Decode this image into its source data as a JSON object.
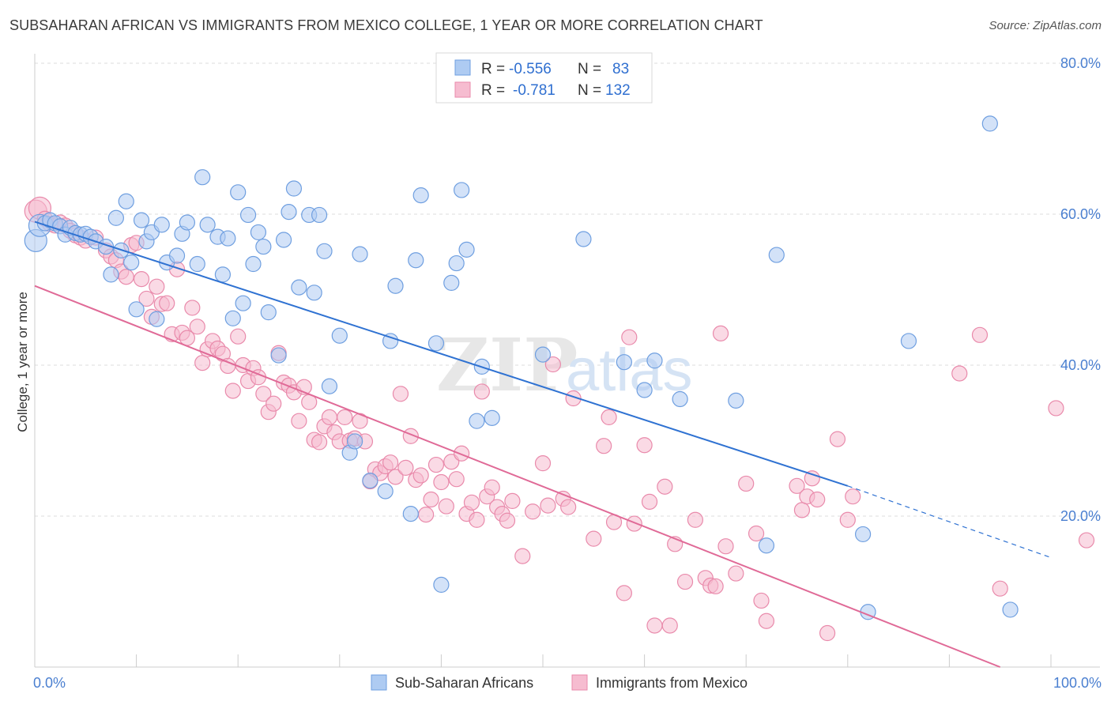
{
  "title": "SUBSAHARAN AFRICAN VS IMMIGRANTS FROM MEXICO COLLEGE, 1 YEAR OR MORE CORRELATION CHART",
  "source": "Source: ZipAtlas.com",
  "watermark": {
    "zip": "ZIP",
    "atlas": "atlas"
  },
  "colors": {
    "blue_fill": "#aecbf2",
    "blue_stroke": "#6f9fe0",
    "blue_line": "#2f72d2",
    "pink_fill": "#f6bcd0",
    "pink_stroke": "#e98aab",
    "pink_line": "#e06a97",
    "tick_text": "#4a7fd0",
    "grid": "#dddddd"
  },
  "legend": {
    "rows": [
      {
        "r_label": "R =",
        "r_value": "-0.556",
        "n_label": "N =",
        "n_value": "83"
      },
      {
        "r_label": "R =",
        "r_value": "-0.781",
        "n_label": "N =",
        "n_value": "132"
      }
    ]
  },
  "chart_data": {
    "type": "scatter",
    "xlabel": "",
    "ylabel": "College, 1 year or more",
    "xlim": [
      0,
      100
    ],
    "ylim": [
      0,
      80
    ],
    "x_tick_labels": [
      {
        "value": 0,
        "label": "0.0%"
      },
      {
        "value": 100,
        "label": "100.0%"
      }
    ],
    "y_tick_labels": [
      {
        "value": 20,
        "label": "20.0%"
      },
      {
        "value": 40,
        "label": "40.0%"
      },
      {
        "value": 60,
        "label": "60.0%"
      },
      {
        "value": 80,
        "label": "80.0%"
      }
    ],
    "grid": true,
    "legend_position": "top-center",
    "series": [
      {
        "name": "Sub-Saharan Africans",
        "color": "#aecbf2",
        "trend": {
          "x": [
            0,
            80,
            100
          ],
          "y": [
            59,
            24,
            14.5
          ],
          "dashed_from_x": 80
        },
        "points": [
          [
            0.1,
            56.5
          ],
          [
            0.5,
            58.5
          ],
          [
            1,
            58.8
          ],
          [
            1.5,
            59.2
          ],
          [
            2,
            58.8
          ],
          [
            2.5,
            58.4
          ],
          [
            3,
            57.3
          ],
          [
            3.5,
            58.2
          ],
          [
            4,
            57.5
          ],
          [
            4.5,
            57.3
          ],
          [
            5,
            57.4
          ],
          [
            5.5,
            57
          ],
          [
            6,
            56.4
          ],
          [
            7,
            55.7
          ],
          [
            7.5,
            52
          ],
          [
            8,
            59.5
          ],
          [
            8.5,
            55.2
          ],
          [
            9,
            61.7
          ],
          [
            9.5,
            53.6
          ],
          [
            10,
            47.4
          ],
          [
            10.5,
            59.2
          ],
          [
            11,
            56.4
          ],
          [
            11.5,
            57.6
          ],
          [
            12,
            46.1
          ],
          [
            12.5,
            58.6
          ],
          [
            13,
            53.6
          ],
          [
            14,
            54.5
          ],
          [
            14.5,
            57.4
          ],
          [
            15,
            58.9
          ],
          [
            16,
            53.4
          ],
          [
            16.5,
            64.9
          ],
          [
            17,
            58.6
          ],
          [
            18,
            57
          ],
          [
            18.5,
            52
          ],
          [
            19,
            56.8
          ],
          [
            19.5,
            46.2
          ],
          [
            20,
            62.9
          ],
          [
            20.5,
            48.2
          ],
          [
            21,
            59.9
          ],
          [
            21.5,
            53.4
          ],
          [
            22,
            57.6
          ],
          [
            22.5,
            55.7
          ],
          [
            23,
            47
          ],
          [
            24,
            41.3
          ],
          [
            24.5,
            56.6
          ],
          [
            25,
            60.3
          ],
          [
            25.5,
            63.4
          ],
          [
            26,
            50.3
          ],
          [
            27,
            59.9
          ],
          [
            27.5,
            49.6
          ],
          [
            28,
            59.9
          ],
          [
            28.5,
            55.1
          ],
          [
            29,
            37.2
          ],
          [
            30,
            43.9
          ],
          [
            31,
            28.4
          ],
          [
            31.5,
            29.9
          ],
          [
            32,
            54.7
          ],
          [
            33,
            24.7
          ],
          [
            34.5,
            23.3
          ],
          [
            35,
            43.2
          ],
          [
            35.5,
            50.5
          ],
          [
            37,
            20.3
          ],
          [
            37.5,
            53.9
          ],
          [
            38,
            62.5
          ],
          [
            39.5,
            42.9
          ],
          [
            40,
            10.9
          ],
          [
            41,
            50.9
          ],
          [
            41.5,
            53.5
          ],
          [
            42,
            63.2
          ],
          [
            42.5,
            55.3
          ],
          [
            43.5,
            32.6
          ],
          [
            44,
            39.8
          ],
          [
            45,
            33
          ],
          [
            50,
            41.4
          ],
          [
            54,
            56.7
          ],
          [
            58,
            40.4
          ],
          [
            60,
            36.7
          ],
          [
            61,
            40.6
          ],
          [
            63.5,
            35.5
          ],
          [
            69,
            35.3
          ],
          [
            72,
            16.1
          ],
          [
            73,
            54.6
          ],
          [
            81.5,
            17.6
          ],
          [
            82,
            7.3
          ],
          [
            86,
            43.2
          ],
          [
            94,
            72
          ],
          [
            96,
            7.6
          ]
        ]
      },
      {
        "name": "Immigrants from Mexico",
        "color": "#f6bcd0",
        "trend": {
          "x": [
            0,
            95
          ],
          "y": [
            50.5,
            0
          ]
        },
        "points": [
          [
            0.1,
            60.4
          ],
          [
            0.5,
            60.8
          ],
          [
            1,
            59.4
          ],
          [
            1.5,
            58.7
          ],
          [
            2,
            58.5
          ],
          [
            2.5,
            58.9
          ],
          [
            3,
            58.5
          ],
          [
            3.5,
            57.8
          ],
          [
            4,
            57.2
          ],
          [
            4.5,
            56.9
          ],
          [
            5,
            56.5
          ],
          [
            6,
            56.9
          ],
          [
            7,
            55.2
          ],
          [
            7.5,
            54.4
          ],
          [
            8,
            53.9
          ],
          [
            8.5,
            52.4
          ],
          [
            9,
            51.7
          ],
          [
            9.5,
            55.9
          ],
          [
            10,
            56.2
          ],
          [
            10.5,
            51.4
          ],
          [
            11,
            48.8
          ],
          [
            11.5,
            46.4
          ],
          [
            12,
            50.4
          ],
          [
            12.5,
            48.1
          ],
          [
            13,
            48.2
          ],
          [
            13.5,
            44.1
          ],
          [
            14,
            52.7
          ],
          [
            14.5,
            44.3
          ],
          [
            15,
            43.6
          ],
          [
            15.5,
            47.6
          ],
          [
            16,
            45.1
          ],
          [
            16.5,
            40.3
          ],
          [
            17,
            42.1
          ],
          [
            17.5,
            43.2
          ],
          [
            18,
            42.2
          ],
          [
            18.5,
            41.5
          ],
          [
            19,
            39.9
          ],
          [
            19.5,
            36.6
          ],
          [
            20,
            43.8
          ],
          [
            20.5,
            40
          ],
          [
            21,
            37.9
          ],
          [
            21.5,
            39.6
          ],
          [
            22,
            38.4
          ],
          [
            22.5,
            36.2
          ],
          [
            23,
            33.8
          ],
          [
            23.5,
            34.9
          ],
          [
            24,
            41.6
          ],
          [
            24.5,
            37.7
          ],
          [
            25,
            37.3
          ],
          [
            25.5,
            36.4
          ],
          [
            26,
            32.6
          ],
          [
            26.5,
            37.1
          ],
          [
            27,
            35.1
          ],
          [
            27.5,
            30.1
          ],
          [
            28,
            29.8
          ],
          [
            28.5,
            31.9
          ],
          [
            29,
            33.1
          ],
          [
            29.5,
            31.1
          ],
          [
            30,
            29.9
          ],
          [
            30.5,
            33.1
          ],
          [
            31,
            30
          ],
          [
            31.5,
            30.3
          ],
          [
            32,
            32.6
          ],
          [
            32.5,
            29.9
          ],
          [
            33,
            24.6
          ],
          [
            33.5,
            26.2
          ],
          [
            34,
            25.7
          ],
          [
            34.5,
            26.6
          ],
          [
            35,
            27.1
          ],
          [
            35.5,
            25.2
          ],
          [
            36,
            36.2
          ],
          [
            36.5,
            26.4
          ],
          [
            37,
            30.6
          ],
          [
            37.5,
            24.8
          ],
          [
            38,
            25.4
          ],
          [
            38.5,
            20.2
          ],
          [
            39,
            22.2
          ],
          [
            39.5,
            26.8
          ],
          [
            40,
            24.5
          ],
          [
            40.5,
            21.3
          ],
          [
            41,
            27.2
          ],
          [
            41.5,
            24.9
          ],
          [
            42,
            28.3
          ],
          [
            42.5,
            20.3
          ],
          [
            43,
            21.8
          ],
          [
            43.5,
            19.5
          ],
          [
            44,
            36.5
          ],
          [
            44.5,
            22.6
          ],
          [
            45,
            23.8
          ],
          [
            45.5,
            21.2
          ],
          [
            46,
            20.3
          ],
          [
            46.5,
            19.4
          ],
          [
            47,
            22
          ],
          [
            48,
            14.7
          ],
          [
            49,
            20.6
          ],
          [
            50,
            27
          ],
          [
            50.5,
            21.4
          ],
          [
            51,
            40.1
          ],
          [
            52,
            22.3
          ],
          [
            52.5,
            21.2
          ],
          [
            53,
            35.6
          ],
          [
            55,
            17
          ],
          [
            56,
            29.3
          ],
          [
            56.5,
            33.1
          ],
          [
            57,
            19.2
          ],
          [
            58,
            9.8
          ],
          [
            58.5,
            43.7
          ],
          [
            59,
            19
          ],
          [
            60,
            29.4
          ],
          [
            60.5,
            21.9
          ],
          [
            61,
            5.5
          ],
          [
            62,
            23.9
          ],
          [
            62.5,
            5.5
          ],
          [
            63,
            16.3
          ],
          [
            64,
            11.3
          ],
          [
            65,
            19.5
          ],
          [
            66,
            11.8
          ],
          [
            66.5,
            10.8
          ],
          [
            67,
            10.7
          ],
          [
            67.5,
            44.2
          ],
          [
            68,
            16
          ],
          [
            69,
            12.4
          ],
          [
            70,
            24.3
          ],
          [
            71,
            17.7
          ],
          [
            71.5,
            8.8
          ],
          [
            72,
            6.1
          ],
          [
            75,
            24
          ],
          [
            75.5,
            20.8
          ],
          [
            76,
            22.6
          ],
          [
            76.5,
            25
          ],
          [
            77,
            22.2
          ],
          [
            78,
            4.5
          ],
          [
            79,
            30.2
          ],
          [
            80,
            19.5
          ],
          [
            80.5,
            22.6
          ],
          [
            91,
            38.9
          ],
          [
            93,
            44
          ]
        ],
        "outliers_right": [
          [
            95,
            10.4
          ],
          [
            100.5,
            34.3
          ],
          [
            103.5,
            16.8
          ],
          [
            108,
            15
          ]
        ]
      }
    ]
  },
  "bottom_legend": [
    {
      "label": "Sub-Saharan Africans"
    },
    {
      "label": "Immigrants from Mexico"
    }
  ]
}
